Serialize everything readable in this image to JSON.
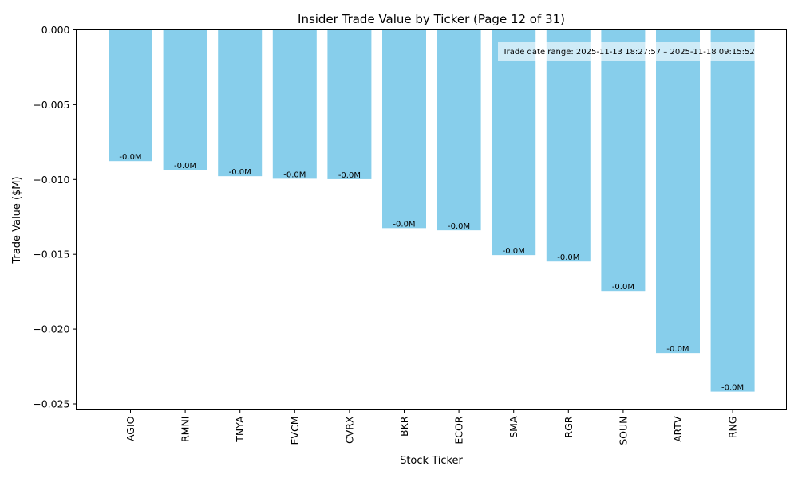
{
  "chart_data": {
    "type": "bar",
    "title": "Insider Trade Value by Ticker (Page 12 of 31)",
    "xlabel": "Stock Ticker",
    "ylabel": "Trade Value ($M)",
    "categories": [
      "AGIO",
      "RMNI",
      "TNYA",
      "EVCM",
      "CVRX",
      "BKR",
      "ECOR",
      "SMA",
      "RGR",
      "SOUN",
      "ARTV",
      "RNG"
    ],
    "values": [
      -0.00877,
      -0.00935,
      -0.00978,
      -0.00995,
      -0.00998,
      -0.01325,
      -0.0134,
      -0.01505,
      -0.01548,
      -0.01745,
      -0.0216,
      -0.02418
    ],
    "data_labels": [
      "-0.0M",
      "-0.0M",
      "-0.0M",
      "-0.0M",
      "-0.0M",
      "-0.0M",
      "-0.0M",
      "-0.0M",
      "-0.0M",
      "-0.0M",
      "-0.0M",
      "-0.0M"
    ],
    "ylim": [
      -0.0254,
      0.0
    ],
    "yticks": [
      0.0,
      -0.005,
      -0.01,
      -0.015,
      -0.02,
      -0.025
    ],
    "ytick_labels": [
      "0.000",
      "−0.005",
      "−0.010",
      "−0.015",
      "−0.020",
      "−0.025"
    ],
    "grid": false,
    "bar_color": "#87CEEB",
    "annotation": "Trade date range: 2025-11-13 18:27:57 – 2025-11-18 09:15:52"
  }
}
